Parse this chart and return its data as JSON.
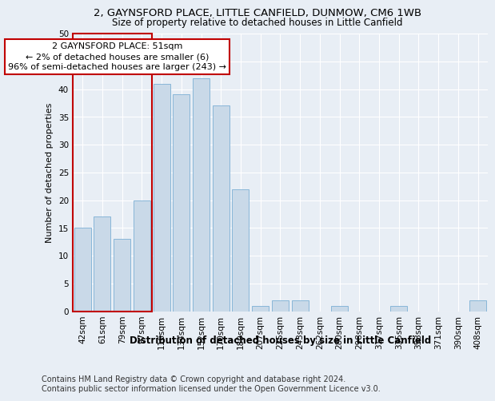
{
  "title1": "2, GAYNSFORD PLACE, LITTLE CANFIELD, DUNMOW, CM6 1WB",
  "title2": "Size of property relative to detached houses in Little Canfield",
  "xlabel": "Distribution of detached houses by size in Little Canfield",
  "ylabel": "Number of detached properties",
  "categories": [
    "42sqm",
    "61sqm",
    "79sqm",
    "97sqm",
    "116sqm",
    "134sqm",
    "152sqm",
    "170sqm",
    "189sqm",
    "207sqm",
    "225sqm",
    "243sqm",
    "262sqm",
    "280sqm",
    "298sqm",
    "317sqm",
    "335sqm",
    "353sqm",
    "371sqm",
    "390sqm",
    "408sqm"
  ],
  "values": [
    15,
    17,
    13,
    20,
    41,
    39,
    42,
    37,
    22,
    1,
    2,
    2,
    0,
    1,
    0,
    0,
    1,
    0,
    0,
    0,
    2
  ],
  "bar_color": "#c9d9e8",
  "bar_edge_color": "#7bafd4",
  "highlight_edge_color": "#c00000",
  "annotation_text": "2 GAYNSFORD PLACE: 51sqm\n← 2% of detached houses are smaller (6)\n96% of semi-detached houses are larger (243) →",
  "annotation_box_color": "#ffffff",
  "annotation_box_edge_color": "#c00000",
  "ylim": [
    0,
    50
  ],
  "yticks": [
    0,
    5,
    10,
    15,
    20,
    25,
    30,
    35,
    40,
    45,
    50
  ],
  "footer1": "Contains HM Land Registry data © Crown copyright and database right 2024.",
  "footer2": "Contains public sector information licensed under the Open Government Licence v3.0.",
  "bg_color": "#e8eef5",
  "plot_bg_color": "#e8eef5",
  "grid_color": "#ffffff",
  "title1_fontsize": 9.5,
  "title2_fontsize": 8.5,
  "xlabel_fontsize": 8.5,
  "ylabel_fontsize": 8,
  "tick_fontsize": 7.5,
  "footer_fontsize": 7,
  "annotation_fontsize": 8
}
